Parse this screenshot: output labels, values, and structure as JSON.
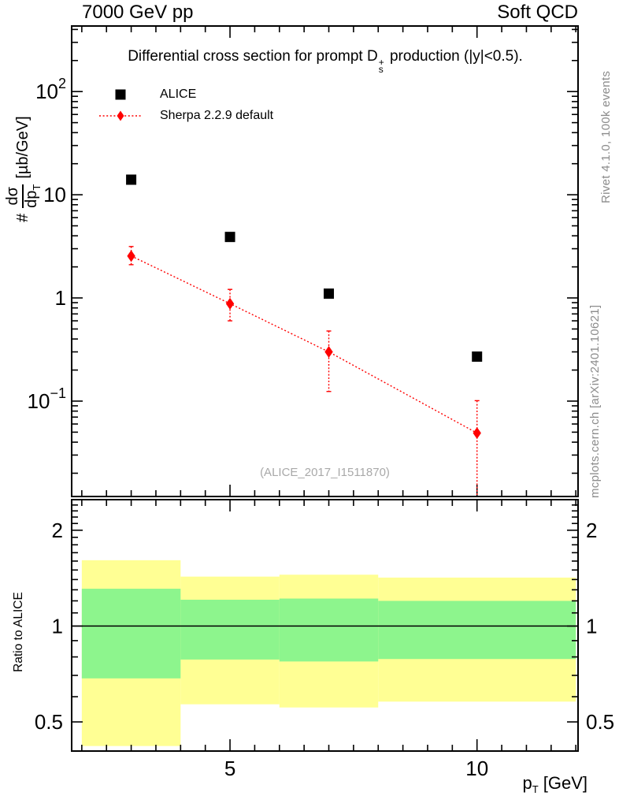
{
  "header": {
    "left": "7000 GeV pp",
    "right": "Soft QCD"
  },
  "plot_title": {
    "prefix": "Differential cross section for prompt D",
    "sup": "+",
    "sub": "s",
    "suffix": " production (|y|<0.5)."
  },
  "legend": {
    "items": [
      {
        "label": "ALICE"
      },
      {
        "label": "Sherpa 2.2.9 default"
      }
    ]
  },
  "watermark": "(ALICE_2017_I1511870)",
  "side_notes": {
    "top_right": "Rivet 4.1.0,  100k events",
    "bottom_right": "mcplots.cern.ch [arXiv:2401.10621]"
  },
  "ylabel": {
    "prefix": "#",
    "num": "dσ",
    "den": "dp",
    "den_sub": "T",
    "units": "[µb/GeV]"
  },
  "xlabel": {
    "main": "p",
    "sub": "T",
    "units": " [GeV]"
  },
  "ratio_label": "Ratio to ALICE",
  "colors": {
    "red": "#ff0000",
    "band_yellow": "#ffff94",
    "band_green": "#8df58d",
    "gray_text": "#8c8c8c"
  },
  "axes": {
    "x": {
      "scale": "linear",
      "min": 1.795,
      "max": 12.045,
      "minor_min": 2,
      "minor_max": 12,
      "minor_step": 0.5,
      "major": [
        5,
        10
      ],
      "tick_labels": [
        {
          "v": 5,
          "label": "5"
        },
        {
          "v": 10,
          "label": "10"
        }
      ]
    },
    "y_main": {
      "scale": "log",
      "min": 0.0119,
      "max": 432,
      "tick_labels": [
        {
          "v": 100,
          "base": "10",
          "exp": "2"
        },
        {
          "v": 10,
          "base": "10",
          "exp": ""
        },
        {
          "v": 1,
          "base": "1",
          "exp": ""
        },
        {
          "v": 0.1,
          "base": "10",
          "exp": "−1"
        }
      ]
    },
    "y_ratio": {
      "scale": "log",
      "min": 0.405,
      "max": 2.495,
      "ticks": [
        {
          "v": 2,
          "label": "2"
        },
        {
          "v": 1,
          "label": "1"
        },
        {
          "v": 0.5,
          "label": "0.5"
        }
      ],
      "minor": [
        0.6,
        0.7,
        0.8,
        0.9,
        1.1,
        1.2,
        1.3,
        1.4,
        1.5,
        1.6,
        1.7,
        1.8,
        1.9,
        2.1,
        2.2,
        2.3,
        2.4
      ]
    }
  },
  "chart_data": {
    "type": "scatter",
    "title": "Differential cross section for prompt D_s^+ production (|y|<0.5).",
    "xlabel": "p_T [GeV]",
    "ylabel": "# dsigma/dp_T [ub/GeV]",
    "x_range": [
      1.8,
      12.05
    ],
    "y_range_main": [
      0.012,
      430
    ],
    "y_range_ratio": [
      0.41,
      2.49
    ],
    "series": [
      {
        "name": "ALICE",
        "marker": "square",
        "color": "#000000",
        "x": [
          3,
          5,
          7,
          10
        ],
        "y": [
          14.0,
          3.9,
          1.1,
          0.27
        ]
      },
      {
        "name": "Sherpa 2.2.9 default",
        "marker": "diamond",
        "color": "#ff0000",
        "line": "dotted",
        "x": [
          3,
          5,
          7,
          10
        ],
        "y": [
          2.55,
          0.88,
          0.3,
          0.049
        ],
        "y_lo": [
          2.1,
          0.6,
          0.124,
          0.012
        ],
        "y_hi": [
          3.15,
          1.21,
          0.478,
          0.101
        ]
      }
    ],
    "ratio_line": 1.0,
    "ratio_bands": [
      {
        "x_range": [
          2,
          4
        ],
        "yellow": [
          0.42,
          1.61
        ],
        "green": [
          0.685,
          1.31
        ]
      },
      {
        "x_range": [
          4,
          6
        ],
        "yellow": [
          0.568,
          1.43
        ],
        "green": [
          0.785,
          1.21
        ]
      },
      {
        "x_range": [
          6,
          8
        ],
        "yellow": [
          0.555,
          1.45
        ],
        "green": [
          0.774,
          1.22
        ]
      },
      {
        "x_range": [
          8,
          12
        ],
        "yellow": [
          0.579,
          1.42
        ],
        "green": [
          0.788,
          1.2
        ]
      }
    ]
  }
}
